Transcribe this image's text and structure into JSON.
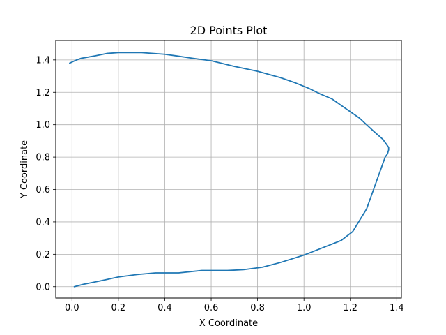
{
  "chart_data": {
    "type": "line",
    "title": "2D Points Plot",
    "xlabel": "X Coordinate",
    "ylabel": "Y Coordinate",
    "xlim": [
      -0.07,
      1.42
    ],
    "ylim": [
      -0.07,
      1.52
    ],
    "xticks": [
      0.0,
      0.2,
      0.4,
      0.6,
      0.8,
      1.0,
      1.2,
      1.4
    ],
    "yticks": [
      0.0,
      0.2,
      0.4,
      0.6,
      0.8,
      1.0,
      1.2,
      1.4
    ],
    "xtick_labels": [
      "0.0",
      "0.2",
      "0.4",
      "0.6",
      "0.8",
      "1.0",
      "1.2",
      "1.4"
    ],
    "ytick_labels": [
      "0.0",
      "0.2",
      "0.4",
      "0.6",
      "0.8",
      "1.0",
      "1.2",
      "1.4"
    ],
    "grid": true,
    "series": [
      {
        "color": "#1f77b4",
        "x": [
          0.01,
          0.05,
          0.12,
          0.2,
          0.28,
          0.36,
          0.46,
          0.56,
          0.67,
          0.74,
          0.82,
          0.9,
          1.0,
          1.08,
          1.16,
          1.21,
          1.24,
          1.27,
          1.3,
          1.33,
          1.35,
          1.36,
          1.365,
          1.365,
          1.34,
          1.3,
          1.27,
          1.24,
          1.2,
          1.16,
          1.12,
          1.07,
          1.02,
          0.96,
          0.9,
          0.8,
          0.7,
          0.6,
          0.52,
          0.45,
          0.4,
          0.3,
          0.2,
          0.15,
          0.1,
          0.04,
          0.02,
          -0.01
        ],
        "y": [
          0.0,
          0.015,
          0.035,
          0.06,
          0.075,
          0.085,
          0.085,
          0.1,
          0.1,
          0.105,
          0.12,
          0.15,
          0.195,
          0.24,
          0.285,
          0.34,
          0.41,
          0.48,
          0.6,
          0.72,
          0.8,
          0.82,
          0.845,
          0.86,
          0.91,
          0.96,
          1.0,
          1.04,
          1.08,
          1.12,
          1.16,
          1.19,
          1.225,
          1.26,
          1.29,
          1.33,
          1.36,
          1.395,
          1.41,
          1.425,
          1.435,
          1.445,
          1.445,
          1.44,
          1.425,
          1.41,
          1.4,
          1.38
        ]
      }
    ]
  }
}
